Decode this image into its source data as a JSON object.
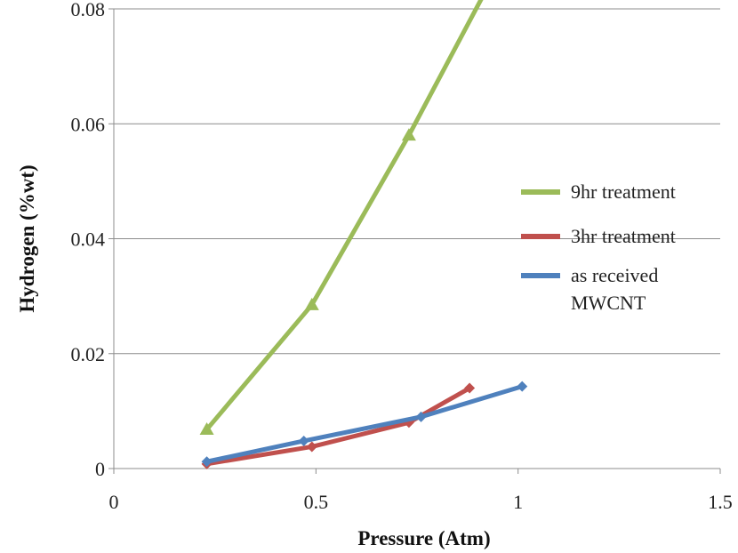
{
  "chart_data": {
    "type": "line",
    "title": "",
    "xlabel": "Pressure (Atm)",
    "ylabel": "Hydrogen (%wt)",
    "xlim": [
      0,
      1.5
    ],
    "ylim": [
      0,
      0.08
    ],
    "xticks": [
      0,
      0.5,
      1,
      1.5
    ],
    "xtick_labels": [
      "0",
      "0.5",
      "1",
      "1.5"
    ],
    "yticks": [
      0,
      0.02,
      0.04,
      0.06,
      0.08
    ],
    "ytick_labels": [
      "0",
      "0.02",
      "0.04",
      "0.06",
      "0.08"
    ],
    "grid": "horizontal",
    "legend_position": "right",
    "series": [
      {
        "name": "9hr treatment",
        "color": "#9bbb59",
        "marker": "triangle",
        "x": [
          0.23,
          0.49,
          0.73,
          0.93
        ],
        "y": [
          0.0068,
          0.0285,
          0.058,
          0.0845
        ]
      },
      {
        "name": "3hr treatment",
        "color": "#c0504d",
        "marker": "diamond",
        "x": [
          0.23,
          0.49,
          0.73,
          0.88
        ],
        "y": [
          0.0008,
          0.0038,
          0.008,
          0.014
        ]
      },
      {
        "name": "as received MWCNT",
        "legend_lines": [
          "as received",
          "MWCNT"
        ],
        "color": "#4f81bd",
        "marker": "diamond",
        "x": [
          0.23,
          0.47,
          0.76,
          1.01
        ],
        "y": [
          0.0012,
          0.0048,
          0.009,
          0.0143
        ]
      }
    ]
  }
}
